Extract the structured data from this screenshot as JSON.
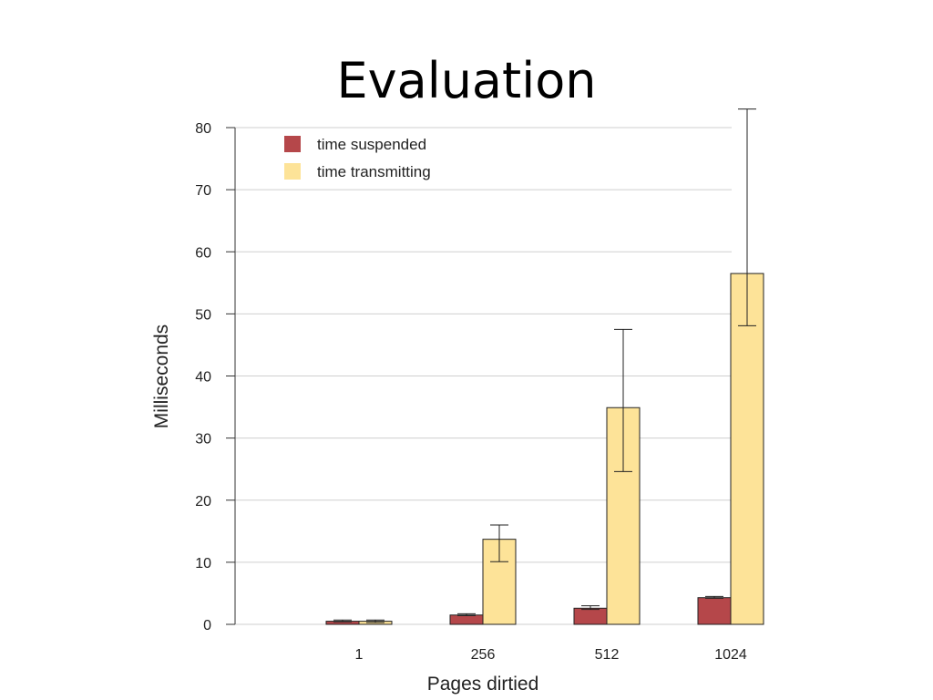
{
  "slide": {
    "title": "Evaluation"
  },
  "chart_data": {
    "type": "bar",
    "title": "",
    "xlabel": "Pages dirtied",
    "ylabel": "Milliseconds",
    "categories": [
      "1",
      "256",
      "512",
      "1024"
    ],
    "ylim": [
      0,
      80
    ],
    "yticks": [
      0,
      10,
      20,
      30,
      40,
      50,
      60,
      70,
      80
    ],
    "grid": true,
    "legend_position": "top-left",
    "series": [
      {
        "name": "time suspended",
        "color": "#b5474a",
        "values": [
          0.5,
          1.5,
          2.6,
          4.3
        ],
        "err_low": [
          0.4,
          1.4,
          2.4,
          4.2
        ],
        "err_high": [
          0.7,
          1.7,
          3.0,
          4.5
        ]
      },
      {
        "name": "time transmitting",
        "color": "#fde398",
        "values": [
          0.5,
          13.7,
          34.9,
          56.5
        ],
        "err_low": [
          0.3,
          10.1,
          24.6,
          48.1
        ],
        "err_high": [
          0.7,
          16.0,
          47.5,
          83.0
        ]
      }
    ]
  }
}
